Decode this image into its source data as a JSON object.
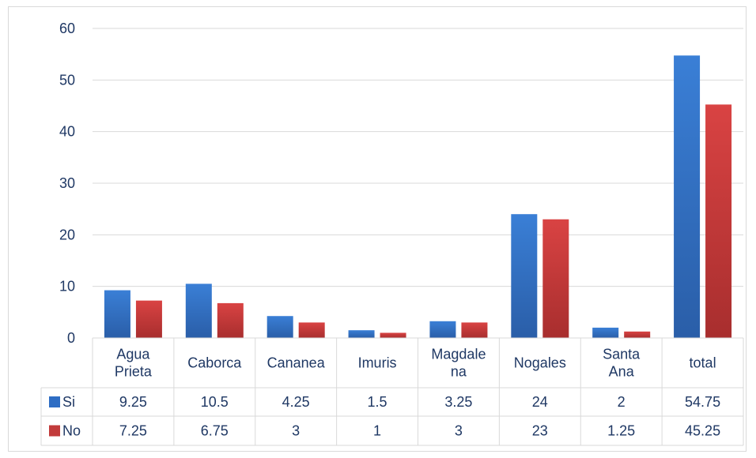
{
  "chart_data": {
    "type": "bar",
    "title": "",
    "xlabel": "",
    "ylabel": "",
    "ylim": [
      0,
      60
    ],
    "yticks": [
      "0",
      "10",
      "20",
      "30",
      "40",
      "50",
      "60"
    ],
    "grid": true,
    "legend": "data-table-left",
    "categories": [
      [
        "Agua",
        "Prieta"
      ],
      [
        "Caborca"
      ],
      [
        "Cananea"
      ],
      [
        "Imuris"
      ],
      [
        "Magdale",
        "na"
      ],
      [
        "Nogales"
      ],
      [
        "Santa",
        "Ana"
      ],
      [
        "total"
      ]
    ],
    "series": [
      {
        "name": "Si",
        "color": "#2e6dc4",
        "values": [
          9.25,
          10.5,
          4.25,
          1.5,
          3.25,
          24,
          2,
          54.75
        ],
        "labels": [
          "9.25",
          "10.5",
          "4.25",
          "1.5",
          "3.25",
          "24",
          "2",
          "54.75"
        ]
      },
      {
        "name": "No",
        "color": "#c23b3b",
        "values": [
          7.25,
          6.75,
          3,
          1,
          3,
          23,
          1.25,
          45.25
        ],
        "labels": [
          "7.25",
          "6.75",
          "3",
          "1",
          "3",
          "23",
          "1.25",
          "45.25"
        ]
      }
    ]
  }
}
